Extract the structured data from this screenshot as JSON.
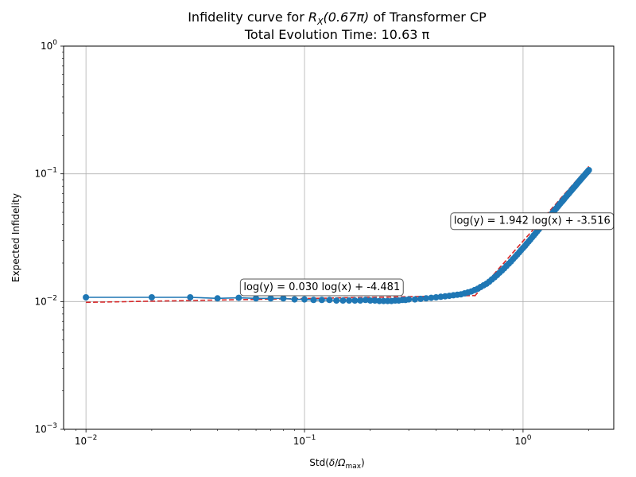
{
  "chart_data": {
    "type": "scatter",
    "title_prefix": "Infidelity curve for ",
    "title_math_base": "R",
    "title_math_sub": "X",
    "title_math_arg": "(0.67π)",
    "title_suffix": " of Transformer CP",
    "subtitle": "Total Evolution Time: 10.63 π",
    "xlabel_prefix": "Std(",
    "xlabel_math_num": "δ",
    "xlabel_math_den": "Ω",
    "xlabel_math_den_sub": "max",
    "xlabel_suffix": ")",
    "ylabel": "Expected Infidelity",
    "xscale": "log",
    "yscale": "log",
    "xlim": [
      0.0079,
      2.6
    ],
    "ylim": [
      0.001,
      1.0
    ],
    "grid": true,
    "x_ticks": [
      {
        "value": 0.01,
        "base": "10",
        "exp": "−2"
      },
      {
        "value": 0.1,
        "base": "10",
        "exp": "−1"
      },
      {
        "value": 1.0,
        "base": "10",
        "exp": "0"
      }
    ],
    "y_ticks": [
      {
        "value": 0.001,
        "base": "10",
        "exp": "−3"
      },
      {
        "value": 0.01,
        "base": "10",
        "exp": "−2"
      },
      {
        "value": 0.1,
        "base": "10",
        "exp": "−1"
      },
      {
        "value": 1.0,
        "base": "10",
        "exp": "0"
      }
    ],
    "series": [
      {
        "kind": "data",
        "color": "#1f77b4",
        "points": [
          [
            0.01,
            0.0108
          ],
          [
            0.02,
            0.0108
          ],
          [
            0.03,
            0.0108
          ],
          [
            0.04,
            0.0106
          ],
          [
            0.05,
            0.0107
          ],
          [
            0.06,
            0.0106
          ],
          [
            0.07,
            0.0106
          ],
          [
            0.08,
            0.0106
          ],
          [
            0.09,
            0.0104
          ],
          [
            0.1,
            0.0104
          ],
          [
            0.11,
            0.0103
          ],
          [
            0.12,
            0.0103
          ],
          [
            0.13,
            0.0103
          ],
          [
            0.14,
            0.0102
          ],
          [
            0.15,
            0.0102
          ],
          [
            0.16,
            0.0102
          ],
          [
            0.17,
            0.0102
          ],
          [
            0.18,
            0.0102
          ],
          [
            0.19,
            0.0103
          ],
          [
            0.2,
            0.0102
          ],
          [
            0.21,
            0.0102
          ],
          [
            0.22,
            0.0101
          ],
          [
            0.23,
            0.0101
          ],
          [
            0.24,
            0.0101
          ],
          [
            0.25,
            0.0101
          ],
          [
            0.26,
            0.0102
          ],
          [
            0.27,
            0.0102
          ],
          [
            0.28,
            0.0103
          ],
          [
            0.29,
            0.0103
          ],
          [
            0.3,
            0.0104
          ],
          [
            0.32,
            0.0104
          ],
          [
            0.34,
            0.0105
          ],
          [
            0.36,
            0.0106
          ],
          [
            0.38,
            0.0107
          ],
          [
            0.4,
            0.0108
          ],
          [
            0.42,
            0.0109
          ],
          [
            0.44,
            0.011
          ],
          [
            0.46,
            0.0111
          ],
          [
            0.48,
            0.0112
          ],
          [
            0.5,
            0.0113
          ],
          [
            0.52,
            0.0114
          ],
          [
            0.54,
            0.0116
          ],
          [
            0.56,
            0.0118
          ],
          [
            0.58,
            0.012
          ],
          [
            0.6,
            0.0123
          ],
          [
            0.62,
            0.0126
          ],
          [
            0.64,
            0.013
          ],
          [
            0.66,
            0.0134
          ],
          [
            0.68,
            0.0138
          ],
          [
            0.7,
            0.0143
          ],
          [
            0.72,
            0.0149
          ],
          [
            0.74,
            0.0155
          ],
          [
            0.76,
            0.0161
          ],
          [
            0.78,
            0.0168
          ],
          [
            0.8,
            0.0175
          ],
          [
            0.82,
            0.0182
          ],
          [
            0.84,
            0.019
          ],
          [
            0.86,
            0.0198
          ],
          [
            0.88,
            0.0206
          ],
          [
            0.9,
            0.0215
          ],
          [
            0.92,
            0.0224
          ],
          [
            0.94,
            0.0233
          ],
          [
            0.96,
            0.0243
          ],
          [
            0.98,
            0.0253
          ],
          [
            1.0,
            0.0263
          ],
          [
            1.02,
            0.0273
          ],
          [
            1.04,
            0.0284
          ],
          [
            1.06,
            0.0295
          ],
          [
            1.08,
            0.0306
          ],
          [
            1.1,
            0.0318
          ],
          [
            1.12,
            0.033
          ],
          [
            1.14,
            0.0342
          ],
          [
            1.16,
            0.0354
          ],
          [
            1.18,
            0.0367
          ],
          [
            1.2,
            0.038
          ],
          [
            1.22,
            0.0393
          ],
          [
            1.24,
            0.0406
          ],
          [
            1.26,
            0.042
          ],
          [
            1.28,
            0.0434
          ],
          [
            1.3,
            0.0448
          ],
          [
            1.32,
            0.0462
          ],
          [
            1.34,
            0.0477
          ],
          [
            1.36,
            0.0492
          ],
          [
            1.38,
            0.0507
          ],
          [
            1.4,
            0.0522
          ],
          [
            1.42,
            0.0537
          ],
          [
            1.44,
            0.0553
          ],
          [
            1.46,
            0.0569
          ],
          [
            1.48,
            0.0585
          ],
          [
            1.5,
            0.0601
          ],
          [
            1.52,
            0.0617
          ],
          [
            1.54,
            0.0634
          ],
          [
            1.56,
            0.0651
          ],
          [
            1.58,
            0.0668
          ],
          [
            1.6,
            0.0685
          ],
          [
            1.62,
            0.0702
          ],
          [
            1.64,
            0.072
          ],
          [
            1.66,
            0.0738
          ],
          [
            1.68,
            0.0756
          ],
          [
            1.7,
            0.0774
          ],
          [
            1.72,
            0.0792
          ],
          [
            1.74,
            0.0811
          ],
          [
            1.76,
            0.083
          ],
          [
            1.78,
            0.0849
          ],
          [
            1.8,
            0.0868
          ],
          [
            1.82,
            0.0887
          ],
          [
            1.84,
            0.0907
          ],
          [
            1.86,
            0.0926
          ],
          [
            1.88,
            0.0946
          ],
          [
            1.9,
            0.0966
          ],
          [
            1.92,
            0.0986
          ],
          [
            1.94,
            0.1007
          ],
          [
            1.96,
            0.1027
          ],
          [
            1.98,
            0.1048
          ],
          [
            2.0,
            0.1069
          ]
        ]
      },
      {
        "kind": "fit",
        "color": "#d62728",
        "dashed": true,
        "fits": [
          {
            "slope": 0.03,
            "intercept": -4.481,
            "x_range": [
              0.01,
              0.6
            ]
          },
          {
            "slope": 1.942,
            "intercept": -3.516,
            "x_range": [
              0.6,
              2.0
            ]
          }
        ]
      }
    ],
    "annotations": [
      {
        "text": "log(y) = 0.030 log(x) + -4.481",
        "x": 0.12,
        "y": 0.0132
      },
      {
        "text": "log(y) = 1.942 log(x) + -3.516",
        "x": 1.1,
        "y": 0.0435
      }
    ]
  }
}
